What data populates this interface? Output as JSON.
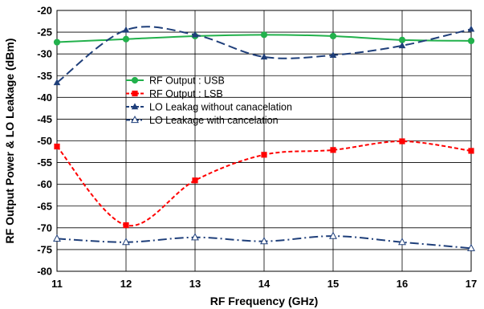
{
  "chart_data": {
    "type": "line",
    "xlabel": "RF Frequency (GHz)",
    "ylabel": "RF Output Power & LO Leakage (dBm)",
    "xlim": [
      11,
      17
    ],
    "ylim": [
      -80,
      -20
    ],
    "x_ticks": [
      "11",
      "12",
      "13",
      "14",
      "15",
      "16",
      "17"
    ],
    "y_ticks": [
      "-20",
      "-25",
      "-30",
      "-35",
      "-40",
      "-45",
      "-50",
      "-55",
      "-60",
      "-65",
      "-70",
      "-75",
      "-80"
    ],
    "grid": true,
    "legend_position": "left",
    "series": [
      {
        "name": "RF Output : USB",
        "color": "#22b14c",
        "line_style": "solid",
        "marker": "circle",
        "x": [
          11,
          12,
          13,
          14,
          15,
          16,
          17
        ],
        "values": [
          -27.3,
          -26.6,
          -25.9,
          -25.6,
          -25.9,
          -26.8,
          -27.0
        ]
      },
      {
        "name": "RF Output : LSB",
        "color": "#ff0000",
        "line_style": "dashed",
        "marker": "square",
        "x": [
          11,
          12,
          13,
          14,
          15,
          16,
          17
        ],
        "values": [
          -51.3,
          -69.4,
          -59.1,
          -53.2,
          -52.1,
          -50.1,
          -52.3
        ]
      },
      {
        "name": "LO Leakag without canacelation",
        "color": "#1f3f7a",
        "line_style": "longdash",
        "marker": "filled-triangle",
        "x": [
          11,
          12,
          13,
          14,
          15,
          16,
          17
        ],
        "values": [
          -36.6,
          -24.5,
          -25.6,
          -30.7,
          -30.3,
          -28.1,
          -24.3
        ]
      },
      {
        "name": "LO Leakage with cancelation",
        "color": "#1f3f7a",
        "line_style": "dashdot",
        "marker": "open-triangle",
        "x": [
          11,
          12,
          13,
          14,
          15,
          16,
          17
        ],
        "values": [
          -72.5,
          -73.3,
          -72.2,
          -73.1,
          -71.9,
          -73.3,
          -74.7
        ]
      }
    ]
  }
}
